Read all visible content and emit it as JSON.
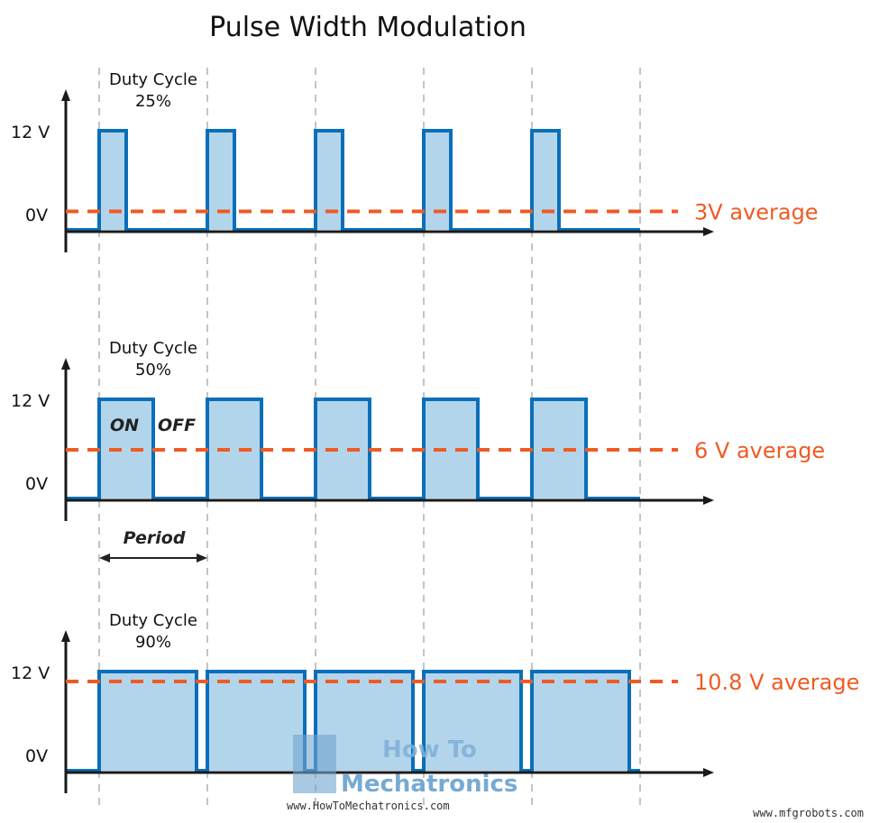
{
  "title": "Pulse Width Modulation",
  "colors": {
    "signal": "#0a6fba",
    "fill": "#b3d5ec",
    "average": "#ee5b24",
    "axis": "#1a1a1a",
    "grid": "#8a8a8a"
  },
  "chart_data": {
    "type": "diagram",
    "periods": 5,
    "panels": [
      {
        "duty_label": "Duty Cycle",
        "duty_value_label": "25%",
        "duty": 0.25,
        "high_label": "12 V",
        "low_label": "0V",
        "average_label": "3V average",
        "average_volts": 3
      },
      {
        "duty_label": "Duty Cycle",
        "duty_value_label": "50%",
        "duty": 0.5,
        "high_label": "12 V",
        "low_label": "0V",
        "average_label": "6 V average",
        "average_volts": 6,
        "on_label": "ON",
        "off_label": "OFF"
      },
      {
        "duty_label": "Duty Cycle",
        "duty_value_label": "90%",
        "duty": 0.9,
        "high_label": "12 V",
        "low_label": "0V",
        "average_label": "10.8 V average",
        "average_volts": 10.8
      }
    ],
    "max_volts": 12,
    "period_label": "Period"
  },
  "watermark": {
    "line1": "How To",
    "line2": "Mechatronics",
    "url": "www.HowToMechatronics.com"
  },
  "credit": "www.mfgrobots.com"
}
